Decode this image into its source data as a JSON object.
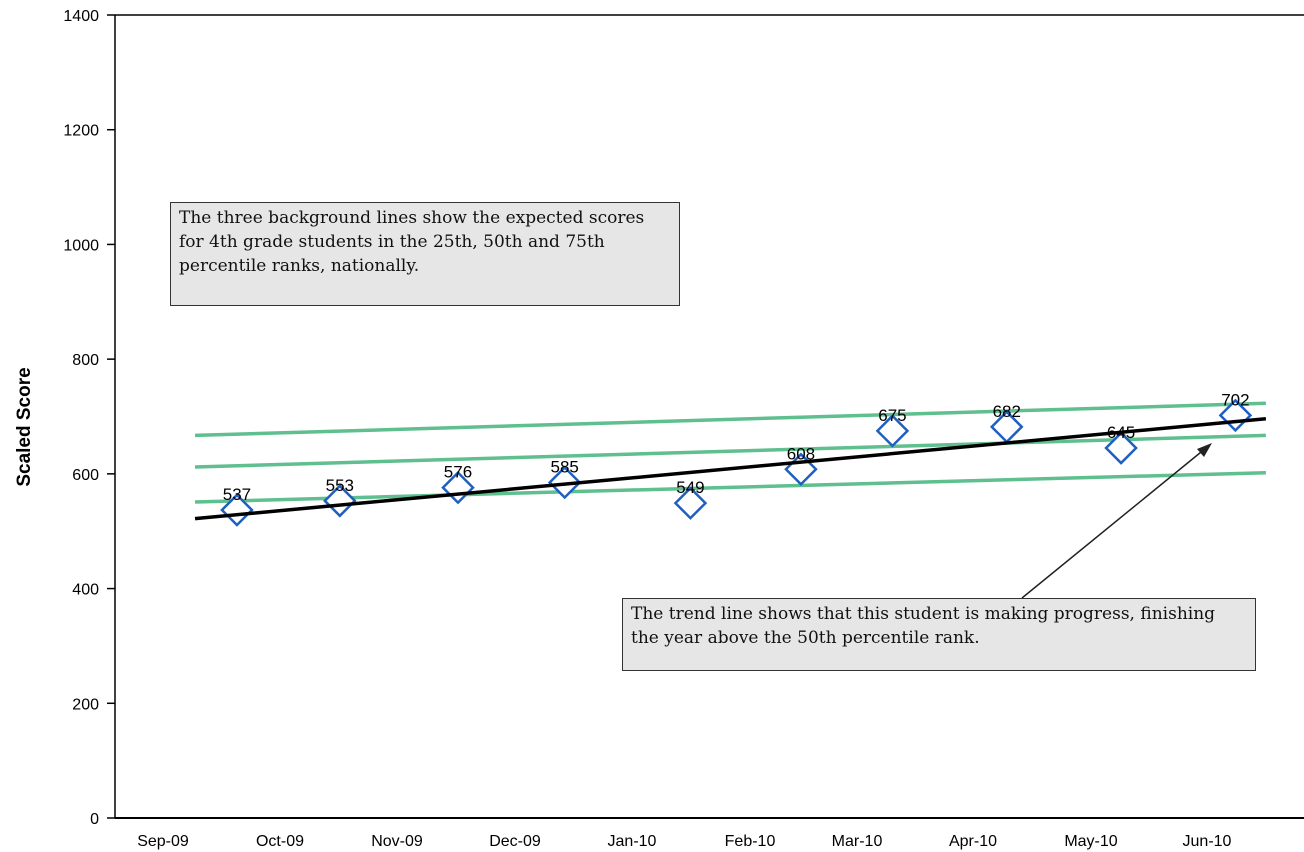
{
  "chart_data": {
    "type": "line",
    "title": "",
    "xlabel": "",
    "ylabel": "Scaled Score",
    "ylim": [
      0,
      1400
    ],
    "yticks": [
      0,
      200,
      400,
      600,
      800,
      1000,
      1200,
      1400
    ],
    "categories": [
      "Sep-09",
      "Oct-09",
      "Nov-09",
      "Dec-09",
      "Jan-10",
      "Feb-10",
      "Mar-10",
      "Apr-10",
      "May-10",
      "Jun-10"
    ],
    "grid": false,
    "legend": "none",
    "series": [
      {
        "marker": "diamond",
        "color": "#1f5fbf",
        "points": [
          {
            "date": "2009-09-25",
            "label": "537",
            "value": 537
          },
          {
            "date": "2009-10-22",
            "label": "553",
            "value": 553
          },
          {
            "date": "2009-11-22",
            "label": "576",
            "value": 576
          },
          {
            "date": "2009-12-20",
            "label": "585",
            "value": 585
          },
          {
            "date": "2010-01-22",
            "label": "549",
            "value": 549
          },
          {
            "date": "2010-02-20",
            "label": "608",
            "value": 608
          },
          {
            "date": "2010-03-16",
            "label": "675",
            "value": 675
          },
          {
            "date": "2010-04-15",
            "label": "682",
            "value": 682
          },
          {
            "date": "2010-05-15",
            "label": "645",
            "value": 645
          },
          {
            "date": "2010-06-14",
            "label": "702",
            "value": 702
          }
        ]
      }
    ],
    "trend_line": {
      "color": "#000000",
      "start": {
        "date": "2009-09-14",
        "value": 522
      },
      "end": {
        "date": "2010-06-22",
        "value": 696
      }
    },
    "percentile_lines": [
      {
        "color": "#5fbf8f",
        "start": {
          "date": "2009-09-14",
          "value": 551
        },
        "end": {
          "date": "2010-06-22",
          "value": 602
        }
      },
      {
        "color": "#5fbf8f",
        "start": {
          "date": "2009-09-14",
          "value": 612
        },
        "end": {
          "date": "2010-06-22",
          "value": 667
        }
      },
      {
        "color": "#5fbf8f",
        "start": {
          "date": "2009-09-14",
          "value": 667
        },
        "end": {
          "date": "2010-06-22",
          "value": 723
        }
      }
    ]
  },
  "annotations": {
    "background_note": "The three background lines show the expected scores for 4th grade students in the 25th, 50th and 75th percentile ranks, nationally.",
    "trend_note": "The trend line shows that this student is making progress, finishing the year above the 50th percentile rank."
  }
}
